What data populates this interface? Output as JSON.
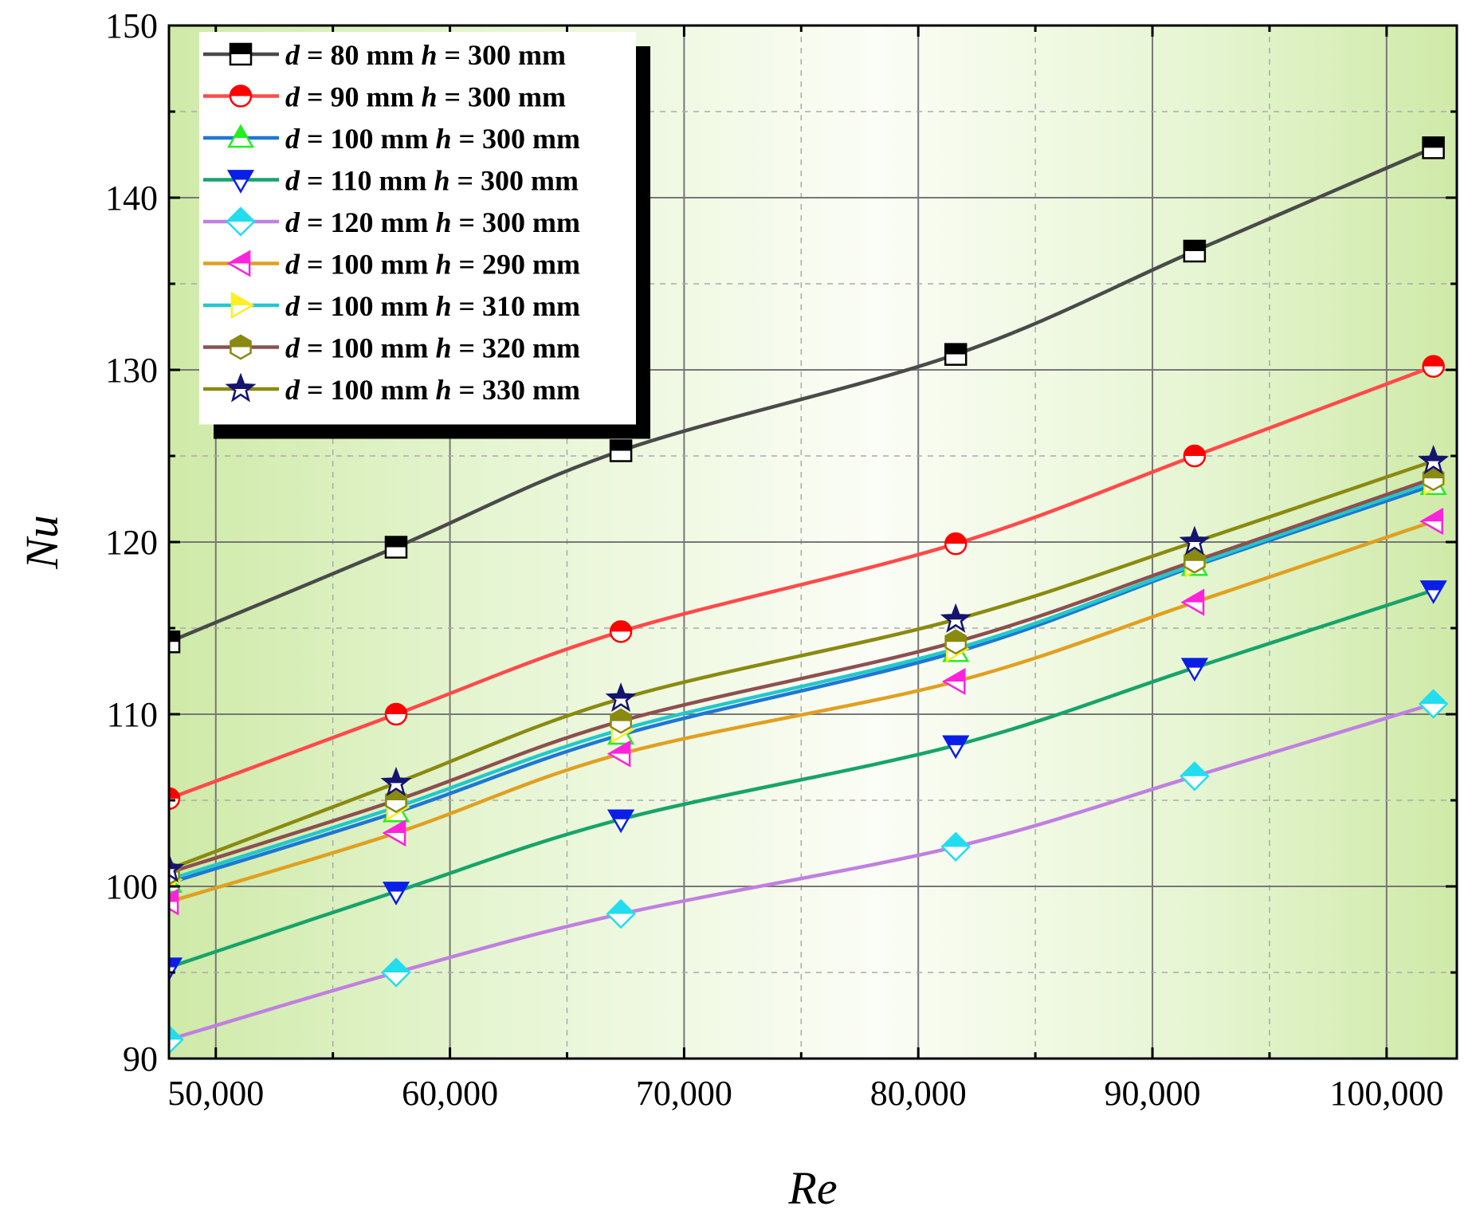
{
  "chart_data": {
    "type": "line",
    "title": "",
    "xlabel": "Re",
    "ylabel": "Nu",
    "xlim": [
      48000,
      103000
    ],
    "ylim": [
      90,
      150
    ],
    "xticks": [
      50000,
      60000,
      70000,
      80000,
      90000,
      100000
    ],
    "xtick_labels": [
      "50,000",
      "60,000",
      "70,000",
      "80,000",
      "90,000",
      "100,000"
    ],
    "yticks": [
      90,
      100,
      110,
      120,
      130,
      140,
      150
    ],
    "ytick_labels": [
      "90",
      "100",
      "110",
      "120",
      "130",
      "140",
      "150"
    ],
    "grid": true,
    "legend_position": "top-left",
    "x": [
      48000,
      57700,
      67300,
      81600,
      91800,
      102000
    ],
    "series": [
      {
        "name": "d = 80 mm h = 300 mm",
        "d": "80",
        "h": "300",
        "color": "#4a4a4a",
        "marker": "square",
        "markerColor": "#000000",
        "values": [
          114.2,
          119.7,
          125.3,
          130.9,
          136.9,
          142.9
        ]
      },
      {
        "name": "d = 90 mm h = 300 mm",
        "d": "90",
        "h": "300",
        "color": "#ff4a4a",
        "marker": "circle",
        "markerColor": "#ff0000",
        "values": [
          105.1,
          110.0,
          114.8,
          119.9,
          125.0,
          130.2
        ]
      },
      {
        "name": "d = 100 mm h = 300 mm",
        "d": "100",
        "h": "300",
        "color": "#1f77d4",
        "marker": "triangle-up",
        "markerColor": "#22ee22",
        "values": [
          100.2,
          104.3,
          108.8,
          113.6,
          118.6,
          123.3
        ]
      },
      {
        "name": "d = 110 mm h = 300 mm",
        "d": "110",
        "h": "300",
        "color": "#17a46a",
        "marker": "triangle-down",
        "markerColor": "#0a1ee8",
        "values": [
          95.3,
          99.7,
          103.9,
          108.2,
          112.7,
          117.2
        ]
      },
      {
        "name": "d = 120 mm h = 300 mm",
        "d": "120",
        "h": "300",
        "color": "#c080e0",
        "marker": "diamond",
        "markerColor": "#22ddee",
        "values": [
          91.1,
          95.0,
          98.4,
          102.3,
          106.4,
          110.6
        ]
      },
      {
        "name": "d = 100 mm h = 290 mm",
        "d": "100",
        "h": "290",
        "color": "#e0a020",
        "marker": "triangle-left",
        "markerColor": "#ff22dd",
        "values": [
          99.1,
          103.1,
          107.7,
          111.9,
          116.5,
          121.2
        ]
      },
      {
        "name": "d = 100 mm h = 310 mm",
        "d": "100",
        "h": "310",
        "color": "#22c8cc",
        "marker": "triangle-right",
        "markerColor": "#ffee22",
        "values": [
          100.4,
          104.6,
          109.1,
          113.8,
          118.7,
          123.5
        ]
      },
      {
        "name": "d = 100 mm h = 320 mm",
        "d": "100",
        "h": "320",
        "color": "#8c5050",
        "marker": "hexagon",
        "markerColor": "#8a8a10",
        "values": [
          100.8,
          105.0,
          109.6,
          114.2,
          118.9,
          123.7
        ]
      },
      {
        "name": "d = 100 mm h = 330 mm",
        "d": "100",
        "h": "330",
        "color": "#8a8a10",
        "marker": "star",
        "markerColor": "#14146e",
        "values": [
          101.0,
          106.0,
          110.9,
          115.5,
          120.0,
          124.7
        ]
      }
    ]
  }
}
